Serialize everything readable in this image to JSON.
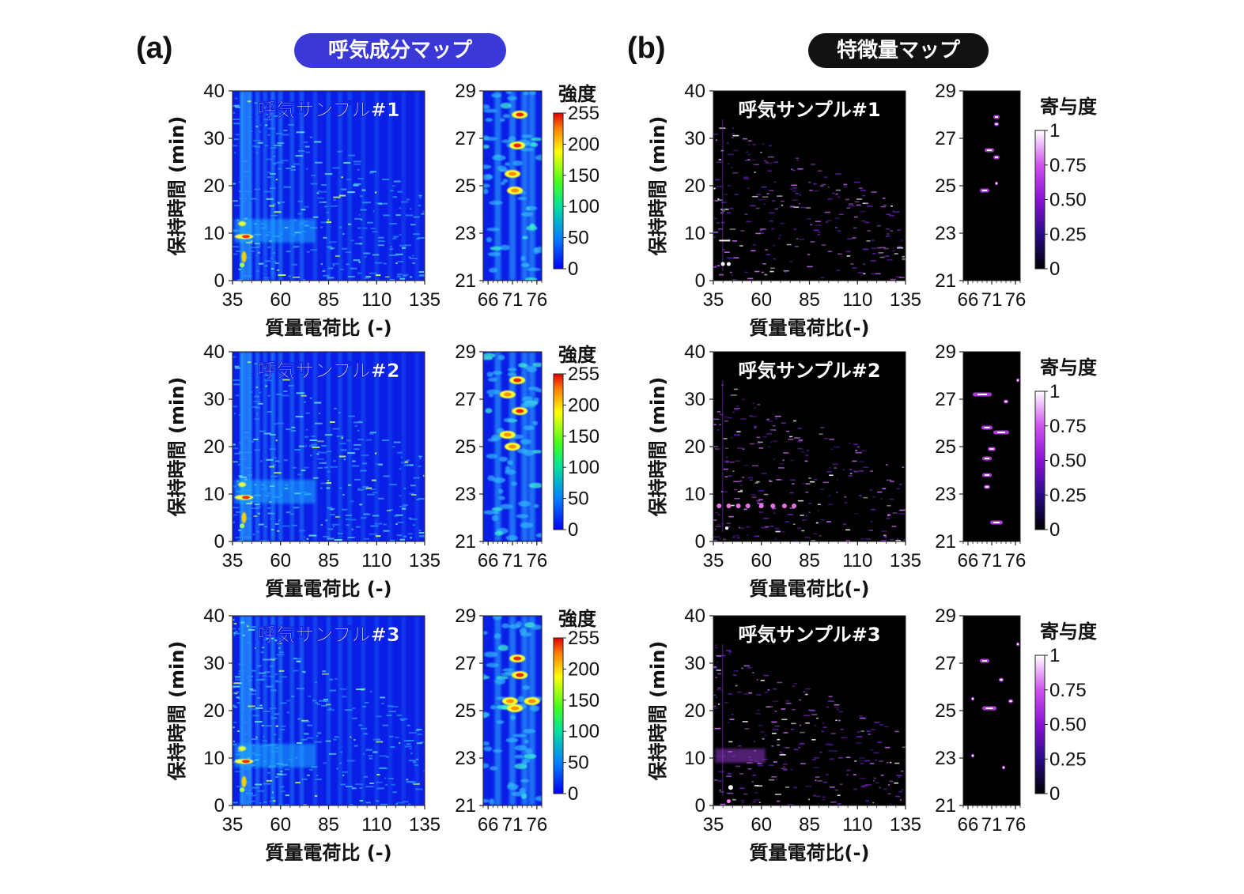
{
  "panel_a": {
    "label": "(a)",
    "title": "呼気成分マップ"
  },
  "panel_b": {
    "label": "(b)",
    "title": "特徴量マップ"
  },
  "chart_data": [
    {
      "type": "heatmap",
      "panel": "a",
      "row": 1,
      "annotation": "呼気サンプル#1",
      "ylabel": "保持時間 (min)",
      "xlabel": "質量電荷比 (-)",
      "xticks": [
        35,
        60,
        85,
        110,
        135
      ],
      "yticks": [
        0,
        10,
        20,
        30,
        40
      ],
      "xlim": [
        35,
        135
      ],
      "ylim": [
        0,
        40
      ],
      "zoom": {
        "xticks": [
          66,
          71,
          76
        ],
        "yticks": [
          21,
          23,
          25,
          27,
          29
        ],
        "xlim": [
          65,
          77
        ],
        "ylim": [
          21,
          29
        ]
      },
      "colorbar": {
        "title": "強度",
        "ticks": [
          "255",
          "200",
          "150",
          "100",
          "50",
          "0"
        ],
        "range": [
          0,
          255
        ],
        "colormap": "jet"
      }
    },
    {
      "type": "heatmap",
      "panel": "a",
      "row": 2,
      "annotation": "呼気サンプル#2",
      "ylabel": "保持時間 (min)",
      "xlabel": "質量電荷比 (-)",
      "xticks": [
        35,
        60,
        85,
        110,
        135
      ],
      "yticks": [
        0,
        10,
        20,
        30,
        40
      ],
      "xlim": [
        35,
        135
      ],
      "ylim": [
        0,
        40
      ],
      "zoom": {
        "xticks": [
          66,
          71,
          76
        ],
        "yticks": [
          21,
          23,
          25,
          27,
          29
        ],
        "xlim": [
          65,
          77
        ],
        "ylim": [
          21,
          29
        ]
      },
      "colorbar": {
        "title": "強度",
        "ticks": [
          "255",
          "200",
          "150",
          "100",
          "50",
          "0"
        ],
        "range": [
          0,
          255
        ],
        "colormap": "jet"
      }
    },
    {
      "type": "heatmap",
      "panel": "a",
      "row": 3,
      "annotation": "呼気サンプル#3",
      "ylabel": "保持時間 (min)",
      "xlabel": "質量電荷比 (-)",
      "xticks": [
        35,
        60,
        85,
        110,
        135
      ],
      "yticks": [
        0,
        10,
        20,
        30,
        40
      ],
      "xlim": [
        35,
        135
      ],
      "ylim": [
        0,
        40
      ],
      "zoom": {
        "xticks": [
          66,
          71,
          76
        ],
        "yticks": [
          21,
          23,
          25,
          27,
          29
        ],
        "xlim": [
          65,
          77
        ],
        "ylim": [
          21,
          29
        ]
      },
      "colorbar": {
        "title": "強度",
        "ticks": [
          "255",
          "200",
          "150",
          "100",
          "50",
          "0"
        ],
        "range": [
          0,
          255
        ],
        "colormap": "jet"
      }
    },
    {
      "type": "heatmap",
      "panel": "b",
      "row": 1,
      "annotation": "呼気サンプル#1",
      "ylabel": "保持時間 (min)",
      "xlabel": "質量電荷比(-)",
      "xticks": [
        35,
        60,
        85,
        110,
        135
      ],
      "yticks": [
        0,
        10,
        20,
        30,
        40
      ],
      "xlim": [
        35,
        135
      ],
      "ylim": [
        0,
        40
      ],
      "zoom": {
        "xticks": [
          66,
          71,
          76
        ],
        "yticks": [
          21,
          23,
          25,
          27,
          29
        ],
        "xlim": [
          65,
          77
        ],
        "ylim": [
          21,
          29
        ]
      },
      "colorbar": {
        "title": "寄与度",
        "ticks": [
          "1",
          "0.75",
          "0.50",
          "0.25",
          "0"
        ],
        "range": [
          0,
          1
        ],
        "colormap": "magenta"
      }
    },
    {
      "type": "heatmap",
      "panel": "b",
      "row": 2,
      "annotation": "呼気サンプル#2",
      "ylabel": "保持時間 (min)",
      "xlabel": "質量電荷比(-)",
      "xticks": [
        35,
        60,
        85,
        110,
        135
      ],
      "yticks": [
        0,
        10,
        20,
        30,
        40
      ],
      "xlim": [
        35,
        135
      ],
      "ylim": [
        0,
        40
      ],
      "zoom": {
        "xticks": [
          66,
          71,
          76
        ],
        "yticks": [
          21,
          23,
          25,
          27,
          29
        ],
        "xlim": [
          65,
          77
        ],
        "ylim": [
          21,
          29
        ]
      },
      "colorbar": {
        "title": "寄与度",
        "ticks": [
          "1",
          "0.75",
          "0.50",
          "0.25",
          "0"
        ],
        "range": [
          0,
          1
        ],
        "colormap": "magenta"
      }
    },
    {
      "type": "heatmap",
      "panel": "b",
      "row": 3,
      "annotation": "呼気サンプル#3",
      "ylabel": "保持時間 (min)",
      "xlabel": "質量電荷比(-)",
      "xticks": [
        35,
        60,
        85,
        110,
        135
      ],
      "yticks": [
        0,
        10,
        20,
        30,
        40
      ],
      "xlim": [
        35,
        135
      ],
      "ylim": [
        0,
        40
      ],
      "zoom": {
        "xticks": [
          66,
          71,
          76
        ],
        "yticks": [
          21,
          23,
          25,
          27,
          29
        ],
        "xlim": [
          65,
          77
        ],
        "ylim": [
          21,
          29
        ]
      },
      "colorbar": {
        "title": "寄与度",
        "ticks": [
          "1",
          "0.75",
          "0.50",
          "0.25",
          "0"
        ],
        "range": [
          0,
          1
        ],
        "colormap": "magenta"
      }
    }
  ]
}
